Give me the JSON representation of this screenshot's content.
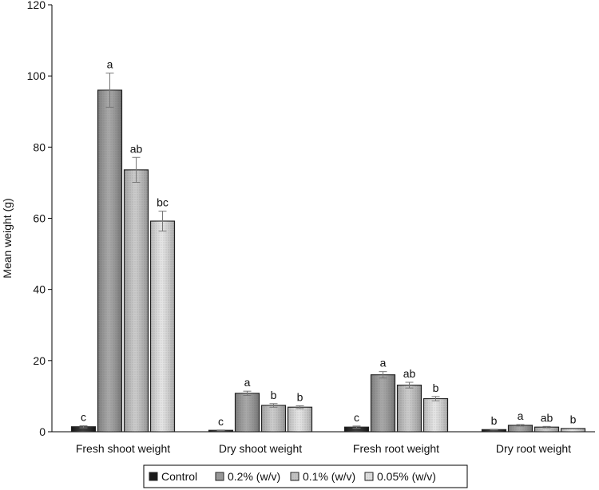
{
  "chart_data": {
    "type": "bar",
    "title": "",
    "xlabel": "",
    "ylabel": "Mean weight (g)",
    "ylim": [
      0,
      120
    ],
    "yticks": [
      0,
      20,
      40,
      60,
      80,
      100,
      120
    ],
    "grid": false,
    "legend_position": "bottom",
    "categories": [
      "Fresh shoot weight",
      "Dry shoot weight",
      "Fresh root weight",
      "Dry root weight"
    ],
    "series": [
      {
        "name": "Control",
        "color": "#1a1a1a",
        "values": [
          1.4,
          0.4,
          1.3,
          0.6
        ],
        "errors": [
          0.3,
          0.1,
          0.3,
          0.1
        ],
        "labels": [
          "c",
          "c",
          "c",
          "b"
        ]
      },
      {
        "name": "0.2% (w/v)",
        "color": "#9a9a9a",
        "values": [
          96,
          10.8,
          16.0,
          1.8
        ],
        "errors": [
          4.8,
          0.6,
          0.9,
          0.2
        ],
        "labels": [
          "a",
          "a",
          "a",
          "a"
        ]
      },
      {
        "name": "0.1% (w/v)",
        "color": "#c4c4c4",
        "values": [
          73.6,
          7.4,
          13.1,
          1.3
        ],
        "errors": [
          3.5,
          0.5,
          0.8,
          0.2
        ],
        "labels": [
          "ab",
          "b",
          "ab",
          "ab"
        ]
      },
      {
        "name": "0.05% (w/v)",
        "color": "#e2e2e2",
        "values": [
          59.2,
          6.9,
          9.3,
          0.9
        ],
        "errors": [
          2.8,
          0.4,
          0.6,
          0.1
        ],
        "labels": [
          "bc",
          "b",
          "b",
          "b"
        ]
      }
    ]
  }
}
